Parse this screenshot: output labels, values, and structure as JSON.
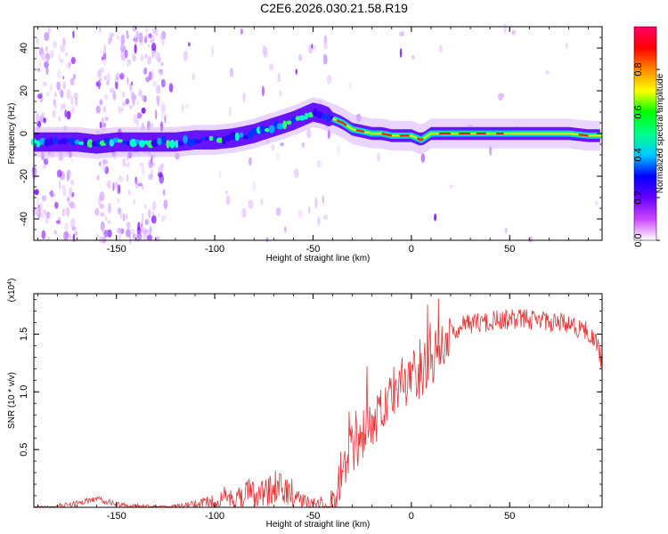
{
  "title": "C2E6.2026.030.21.58.R19",
  "chart_data": [
    {
      "type": "heatmap",
      "name": "spectrogram",
      "xlabel": "Height of straight line (km)",
      "ylabel": "Frequency (Hz)",
      "xlim": [
        -192,
        97
      ],
      "ylim": [
        -50,
        50
      ],
      "x_ticks": [
        -150,
        -100,
        -50,
        0,
        50
      ],
      "x_tick_labels": [
        "-150",
        "-100",
        "-50",
        "0",
        "50"
      ],
      "y_ticks": [
        -40,
        -20,
        0,
        20,
        40
      ],
      "y_tick_labels": [
        "-40",
        "-20",
        "0",
        "20",
        "40"
      ],
      "ridge": {
        "heights": [
          -192,
          -180,
          -170,
          -160,
          -150,
          -140,
          -130,
          -120,
          -110,
          -100,
          -90,
          -80,
          -70,
          -60,
          -55,
          -50,
          -45,
          -40,
          -35,
          -30,
          -25,
          -20,
          -15,
          -10,
          -5,
          0,
          5,
          10,
          20,
          30,
          40,
          50,
          60,
          70,
          80,
          90,
          97
        ],
        "frequency_hz": [
          -4,
          -4,
          -4,
          -5,
          -4,
          -4,
          -4,
          -4,
          -3,
          -3,
          -2,
          0,
          3,
          6,
          8,
          10,
          9,
          7,
          5,
          2,
          1,
          0,
          0,
          -1,
          -1,
          -1,
          -3,
          0,
          0,
          0,
          0,
          0,
          0,
          0,
          0,
          -1,
          -1
        ]
      },
      "colorbar": {
        "label": "Normalized spectral amplitude",
        "range": [
          0,
          1
        ],
        "ticks": [
          0.0,
          0.2,
          0.4,
          0.6,
          0.8
        ],
        "tick_labels": [
          "0.0",
          "0.2",
          "0.4",
          "0.6",
          "0.8"
        ],
        "colors": [
          "#ffffff",
          "#cc44ff",
          "#6600ff",
          "#0000ff",
          "#00ccff",
          "#00ff88",
          "#00ff00",
          "#ffff00",
          "#ff8800",
          "#ff0000",
          "#ff0066"
        ]
      }
    },
    {
      "type": "line",
      "name": "snr",
      "xlabel": "Height of straight line (km)",
      "ylabel": "SNR (10 * v/v)",
      "y_multiplier_label": "(x10",
      "y_multiplier_exponent": "4",
      "y_multiplier_close": ")",
      "xlim": [
        -192,
        97
      ],
      "ylim": [
        0,
        1.85
      ],
      "x_ticks": [
        -150,
        -100,
        -50,
        0,
        50
      ],
      "x_tick_labels": [
        "-150",
        "-100",
        "-50",
        "0",
        "50"
      ],
      "y_ticks": [
        0.5,
        1.0,
        1.5
      ],
      "y_tick_labels": [
        "0.5",
        "1.0",
        "1.5"
      ],
      "series": [
        {
          "name": "SNR",
          "color": "#ee3333",
          "x": [
            -192,
            -180,
            -170,
            -165,
            -160,
            -150,
            -140,
            -130,
            -120,
            -110,
            -100,
            -95,
            -90,
            -85,
            -80,
            -75,
            -70,
            -65,
            -60,
            -55,
            -50,
            -45,
            -40,
            -35,
            -30,
            -25,
            -20,
            -15,
            -10,
            -5,
            0,
            5,
            10,
            15,
            20,
            25,
            30,
            40,
            50,
            60,
            70,
            80,
            85,
            90,
            95,
            97
          ],
          "y": [
            0.01,
            0.03,
            0.06,
            0.08,
            0.1,
            0.05,
            0.03,
            0.02,
            0.03,
            0.06,
            0.12,
            0.18,
            0.15,
            0.22,
            0.3,
            0.25,
            0.35,
            0.28,
            0.25,
            0.12,
            0.08,
            0.1,
            0.28,
            0.6,
            0.72,
            0.85,
            0.95,
            1.05,
            1.15,
            1.25,
            1.3,
            1.4,
            1.5,
            1.6,
            1.62,
            1.65,
            1.68,
            1.7,
            1.72,
            1.72,
            1.7,
            1.68,
            1.65,
            1.6,
            1.5,
            1.3
          ]
        }
      ]
    }
  ]
}
